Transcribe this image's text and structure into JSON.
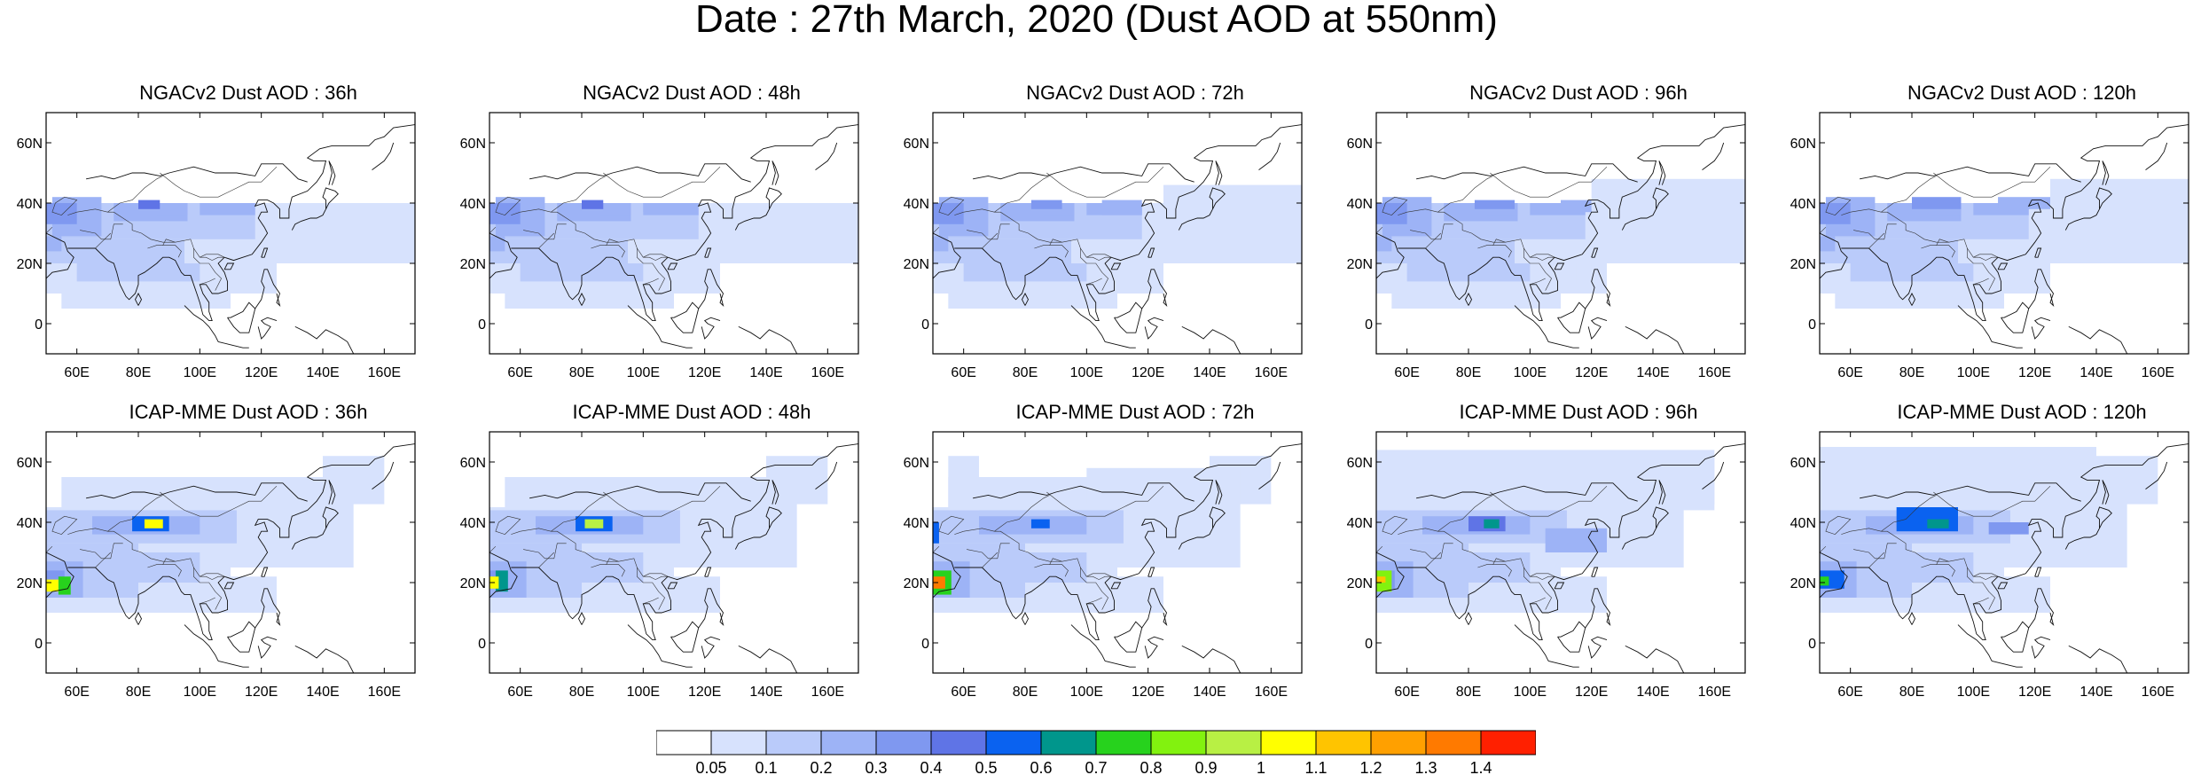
{
  "title": "Date : 27th March, 2020 (Dust AOD at 550nm)",
  "map": {
    "lat_ticks": [
      "60N",
      "40N",
      "20N",
      "0"
    ],
    "lon_ticks": [
      "60E",
      "80E",
      "100E",
      "120E",
      "140E",
      "160E"
    ]
  },
  "panels": [
    {
      "title": "NGACv2 Dust AOD : 36h",
      "model": "NGACv2",
      "lead": "36h"
    },
    {
      "title": "NGACv2 Dust AOD : 48h",
      "model": "NGACv2",
      "lead": "48h"
    },
    {
      "title": "NGACv2 Dust AOD : 72h",
      "model": "NGACv2",
      "lead": "72h"
    },
    {
      "title": "NGACv2 Dust AOD : 96h",
      "model": "NGACv2",
      "lead": "96h"
    },
    {
      "title": "NGACv2 Dust AOD : 120h",
      "model": "NGACv2",
      "lead": "120h"
    },
    {
      "title": "ICAP-MME Dust AOD : 36h",
      "model": "ICAP-MME",
      "lead": "36h"
    },
    {
      "title": "ICAP-MME Dust AOD : 48h",
      "model": "ICAP-MME",
      "lead": "48h"
    },
    {
      "title": "ICAP-MME Dust AOD : 72h",
      "model": "ICAP-MME",
      "lead": "72h"
    },
    {
      "title": "ICAP-MME Dust AOD : 96h",
      "model": "ICAP-MME",
      "lead": "96h"
    },
    {
      "title": "ICAP-MME Dust AOD : 120h",
      "model": "ICAP-MME",
      "lead": "120h"
    }
  ],
  "colorbar": {
    "labels": [
      "0.05",
      "0.1",
      "0.2",
      "0.3",
      "0.4",
      "0.5",
      "0.6",
      "0.7",
      "0.8",
      "0.9",
      "1",
      "1.1",
      "1.2",
      "1.3",
      "1.4"
    ],
    "colors": [
      "#ffffff",
      "#d7e2fd",
      "#bacbfa",
      "#9db3f6",
      "#7f98f0",
      "#5f74e6",
      "#0a62f0",
      "#00968c",
      "#27d21d",
      "#82f20f",
      "#b8f044",
      "#ffff00",
      "#ffc400",
      "#ffa000",
      "#ff7a00",
      "#ff2000"
    ]
  }
}
